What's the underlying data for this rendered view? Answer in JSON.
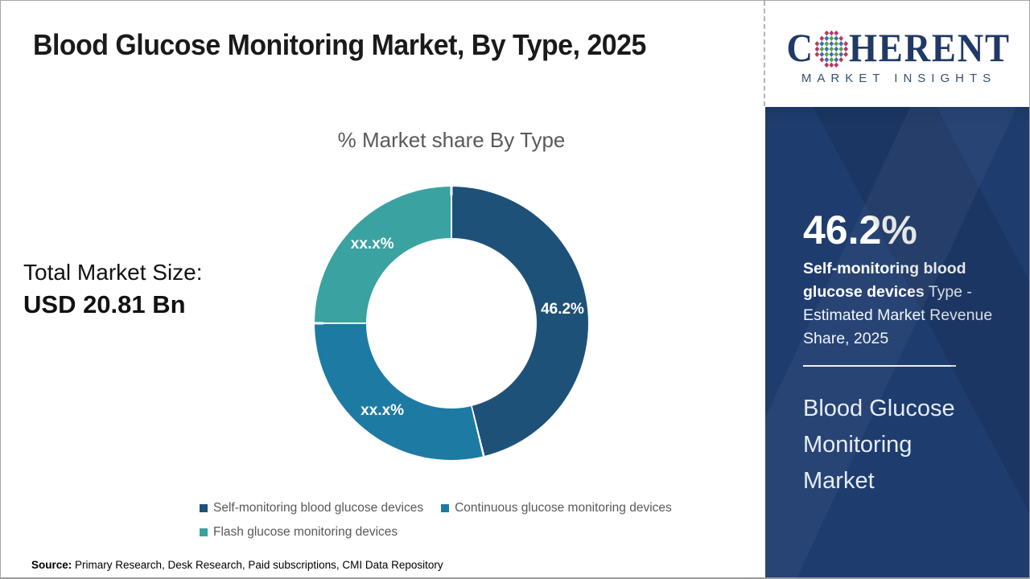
{
  "page": {
    "title": "Blood Glucose Monitoring Market, By Type, 2025",
    "source_label": "Source:",
    "source_text": " Primary Research, Desk Research, Paid subscriptions, CMI Data Repository"
  },
  "logo": {
    "brand_prefix": "C",
    "brand_suffix": "HERENT",
    "subtitle": "MARKET INSIGHTS",
    "wordmark_color": "#203966",
    "globe_colors": {
      "rim": "#b23a66",
      "green": "#5ba244",
      "blue": "#3a6db0"
    }
  },
  "total_market": {
    "label": "Total Market Size:",
    "value": "USD 20.81 Bn"
  },
  "chart_data": {
    "type": "pie",
    "subtype": "donut",
    "title": "% Market share By Type",
    "categories": [
      "Self-monitoring blood glucose devices",
      "Continuous glucose monitoring devices",
      "Flash glucose monitoring devices"
    ],
    "values": [
      46.2,
      28.8,
      25.0
    ],
    "labels": [
      "46.2%",
      "xx.x%",
      "xx.x%"
    ],
    "colors": [
      "#1e5178",
      "#1d7aa3",
      "#3aa2a1"
    ],
    "start_angle_deg": 0,
    "donut_hole_ratio": 0.62,
    "legend_position": "bottom",
    "note": "Only the 46.2% share is disclosed; remaining slice values are masked as xx.x% and estimated from arc geometry"
  },
  "sidebar": {
    "background": "#1e3c6e",
    "stat_value": "46.2%",
    "stat_desc_bold": "Self-monitoring blood glucose devices",
    "stat_desc_rest": " Type - Estimated Market Revenue Share, 2025",
    "market_name": "Blood Glucose Monitoring Market"
  }
}
